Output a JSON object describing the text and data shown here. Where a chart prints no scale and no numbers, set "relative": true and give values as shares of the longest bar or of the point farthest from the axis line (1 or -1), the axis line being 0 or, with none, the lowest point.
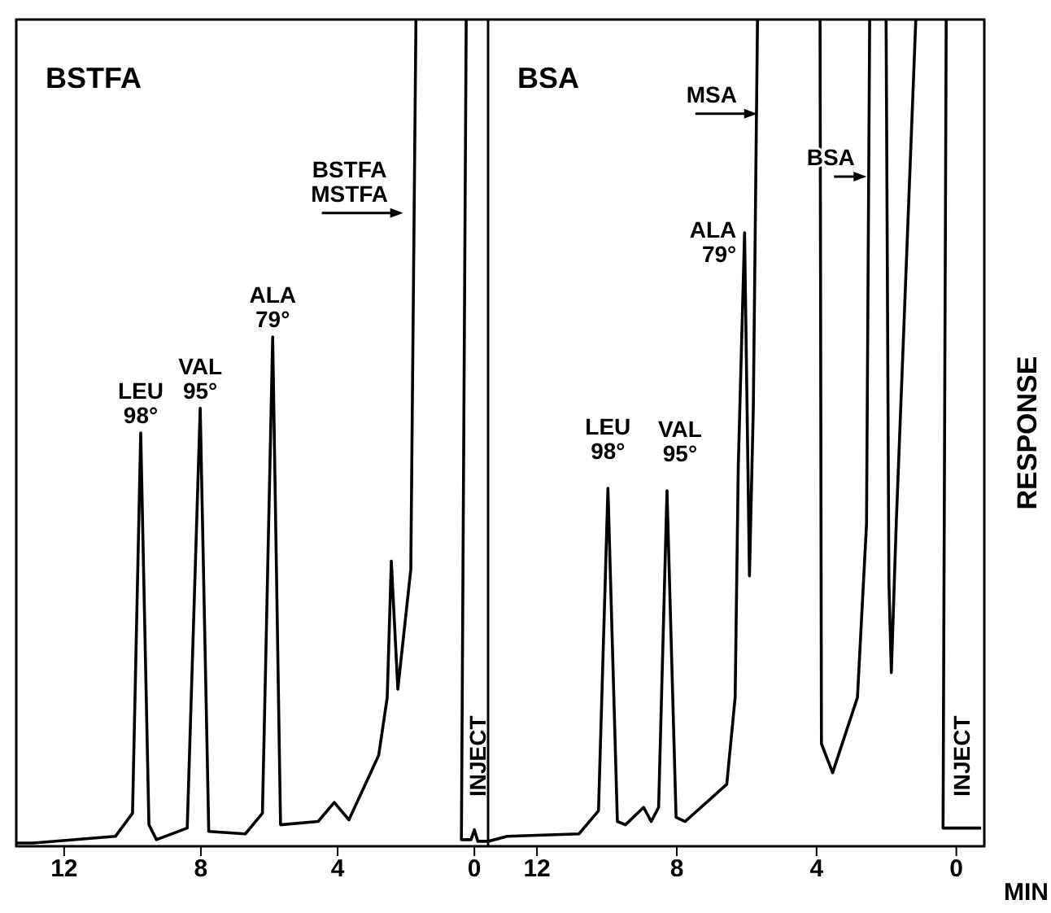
{
  "chart_data": [
    {
      "type": "line",
      "title": "BSTFA",
      "relative": true,
      "xlim": [
        13.4,
        -0.4
      ],
      "xticks": [
        12,
        8,
        4,
        0
      ],
      "series": [
        {
          "color": "#000000",
          "x": [
            13.4,
            12.9,
            10.5,
            10.0,
            9.76,
            9.52,
            9.3,
            8.4,
            8.02,
            7.77,
            6.7,
            6.2,
            5.9,
            5.67,
            4.57,
            4.1,
            3.67,
            2.8,
            2.55,
            2.43,
            2.24,
            1.86,
            1.71,
            1.0,
            0.24,
            0.38,
            0.1,
            0.0,
            -0.1,
            -0.4
          ],
          "values": [
            0.004,
            0.004,
            0.012,
            0.04,
            0.5,
            0.026,
            0.008,
            0.022,
            0.53,
            0.018,
            0.015,
            0.04,
            0.616,
            0.026,
            0.03,
            0.053,
            0.032,
            0.11,
            0.18,
            0.345,
            0.19,
            0.335,
            1.0,
            null,
            1.0,
            0.008,
            0.008,
            0.02,
            0.006,
            0.006
          ]
        }
      ],
      "annotations": [
        {
          "text": "LEU\n98°",
          "x": 9.76,
          "y": 0.5
        },
        {
          "text": "VAL\n95°",
          "x": 8.02,
          "y": 0.53
        },
        {
          "text": "ALA\n79°",
          "x": 5.9,
          "y": 0.616
        },
        "BSTFA\nMSTFA",
        "INJECT"
      ]
    },
    {
      "type": "line",
      "title": "BSA",
      "relative": true,
      "xlim": [
        13.4,
        -0.8
      ],
      "xticks": [
        12,
        8,
        4,
        0
      ],
      "xlabel": "MIN",
      "ylabel": "RESPONSE",
      "series": [
        {
          "color": "#000000",
          "x": [
            13.4,
            12.85,
            10.8,
            10.24,
            9.97,
            9.7,
            9.47,
            8.95,
            8.73,
            8.52,
            8.28,
            8.02,
            7.76,
            6.57,
            6.33,
            6.24,
            6.06,
            5.92,
            5.81,
            5.69,
            4.8,
            3.9,
            3.86,
            3.54,
            2.83,
            2.57,
            2.48,
            2.2,
            2.01,
            1.93,
            1.86,
            1.72,
            1.16,
            0.7,
            0.29,
            0.38,
            -0.05,
            -0.71
          ],
          "values": [
            0.006,
            0.012,
            0.015,
            0.043,
            0.433,
            0.03,
            0.026,
            0.047,
            0.03,
            0.047,
            0.43,
            0.035,
            0.03,
            0.075,
            0.18,
            0.46,
            0.742,
            0.327,
            0.53,
            1.0,
            null,
            1.0,
            0.124,
            0.089,
            0.18,
            0.39,
            1.0,
            null,
            1.0,
            0.32,
            0.21,
            0.39,
            1.0,
            null,
            1.0,
            0.022,
            0.022,
            0.022
          ]
        }
      ],
      "annotations": [
        {
          "text": "LEU\n98°",
          "x": 9.97,
          "y": 0.433
        },
        {
          "text": "VAL\n95°",
          "x": 8.28,
          "y": 0.43
        },
        {
          "text": "ALA\n79°",
          "x": 6.06,
          "y": 0.742
        },
        {
          "text": "MSA",
          "x": 5.7,
          "y": 0.886
        },
        {
          "text": "BSA",
          "x": 2.57,
          "y": 0.81
        },
        "INJECT"
      ]
    }
  ]
}
